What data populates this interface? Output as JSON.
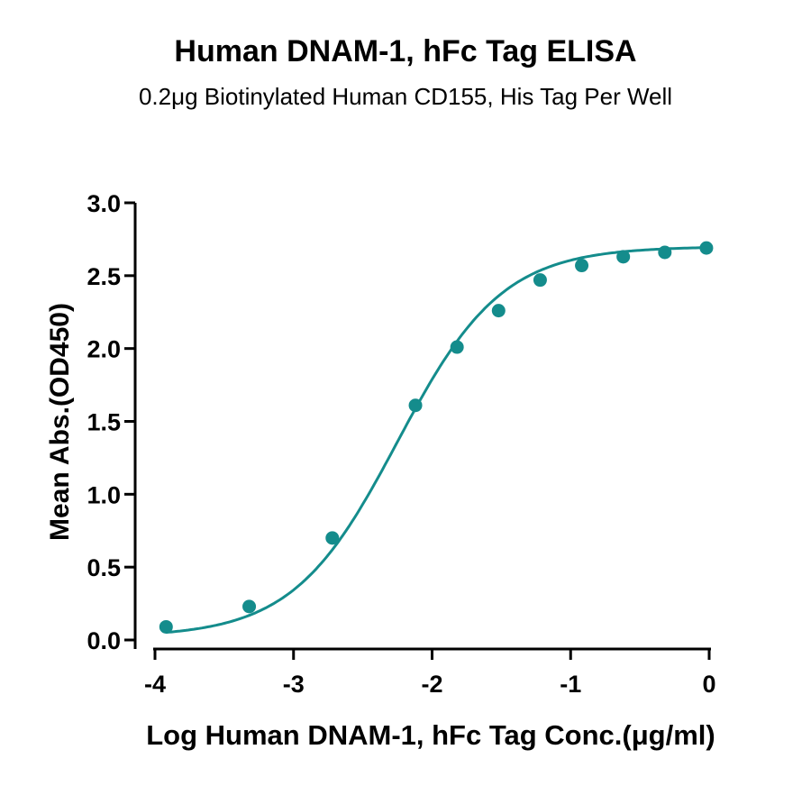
{
  "chart_data": {
    "type": "scatter",
    "title": "Human DNAM-1, hFc Tag ELISA",
    "subtitle": "0.2μg Biotinylated Human CD155, His Tag Per Well",
    "xlabel": "Log Human DNAM-1, hFc Tag Conc.(μg/ml)",
    "ylabel": "Mean Abs.(OD450)",
    "xlim": [
      -4,
      0
    ],
    "ylim": [
      0,
      3
    ],
    "xticks": [
      -4,
      -3,
      -2,
      -1,
      0
    ],
    "xtick_labels": [
      "-4",
      "-3",
      "-2",
      "-1",
      "0"
    ],
    "yticks": [
      0,
      0.5,
      1,
      1.5,
      2,
      2.5,
      3
    ],
    "ytick_labels": [
      "0.0",
      "0.5",
      "1.0",
      "1.5",
      "2.0",
      "2.5",
      "3.0"
    ],
    "series": [
      {
        "x": [
          -3.92,
          -3.32,
          -2.72,
          -2.12,
          -1.82,
          -1.52,
          -1.22,
          -0.92,
          -0.62,
          -0.32,
          -0.02
        ],
        "y": [
          0.09,
          0.23,
          0.7,
          1.61,
          2.01,
          2.26,
          2.47,
          2.57,
          2.63,
          2.66,
          2.69
        ],
        "color": "#148c8c",
        "fit_curve": true
      }
    ],
    "grid": false
  }
}
